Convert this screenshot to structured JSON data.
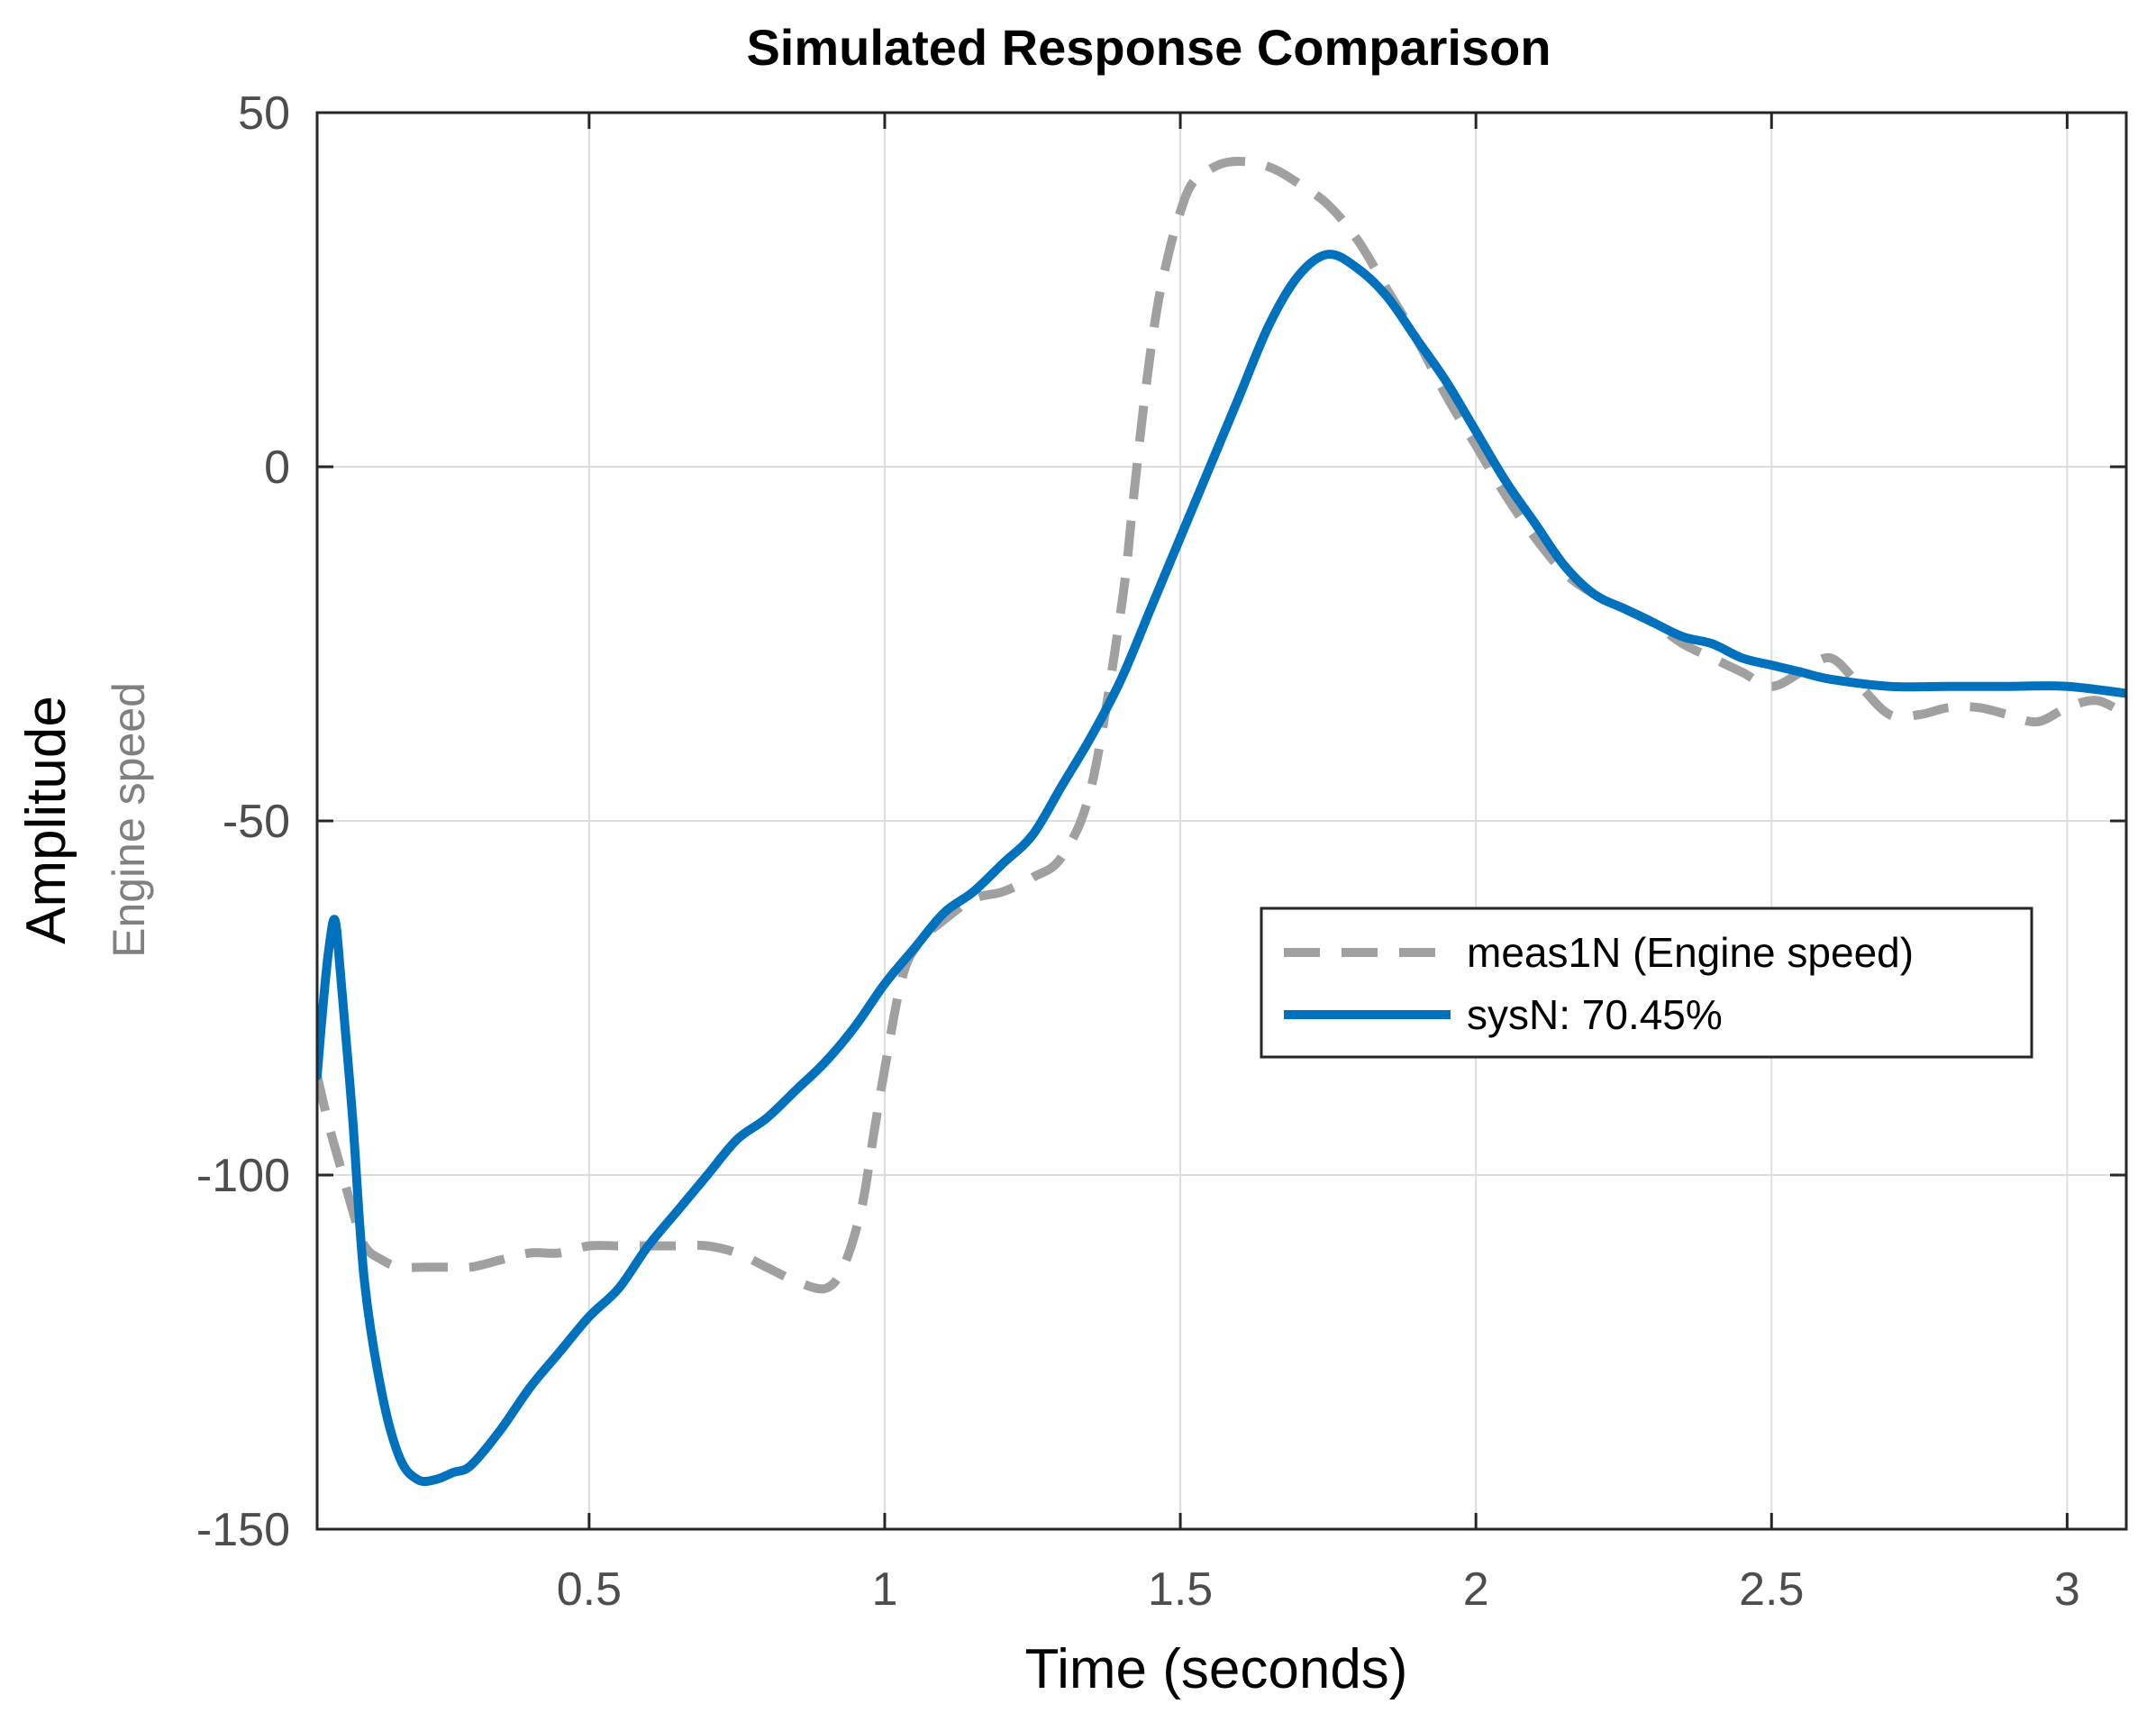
{
  "chart_data": {
    "type": "line",
    "title": "Simulated Response Comparison",
    "xlabel": "Time (seconds)",
    "ylabel": "Amplitude",
    "ylabel_sub": "Engine speed",
    "xlim": [
      0.04,
      3.1
    ],
    "ylim": [
      -150,
      50
    ],
    "xticks": [
      0.5,
      1,
      1.5,
      2,
      2.5,
      3
    ],
    "xtick_labels": [
      "0.5",
      "1",
      "1.5",
      "2",
      "2.5",
      "3"
    ],
    "yticks": [
      -150,
      -100,
      -50,
      0,
      50
    ],
    "ytick_labels": [
      "-150",
      "-100",
      "-50",
      "0",
      "50"
    ],
    "grid": true,
    "legend_position": "center-right",
    "series": [
      {
        "name": "meas1N (Engine speed)",
        "style": "dashed",
        "color": "#a0a0a0",
        "x": [
          0.04,
          0.06,
          0.08,
          0.1,
          0.12,
          0.15,
          0.18,
          0.22,
          0.26,
          0.3,
          0.35,
          0.4,
          0.45,
          0.5,
          0.55,
          0.6,
          0.65,
          0.7,
          0.75,
          0.8,
          0.85,
          0.9,
          0.93,
          0.96,
          0.98,
          1.0,
          1.03,
          1.06,
          1.1,
          1.15,
          1.2,
          1.25,
          1.3,
          1.35,
          1.4,
          1.42,
          1.44,
          1.46,
          1.48,
          1.5,
          1.52,
          1.55,
          1.58,
          1.62,
          1.66,
          1.7,
          1.75,
          1.8,
          1.85,
          1.9,
          1.95,
          2.0,
          2.05,
          2.1,
          2.15,
          2.2,
          2.25,
          2.3,
          2.35,
          2.4,
          2.45,
          2.5,
          2.55,
          2.6,
          2.65,
          2.7,
          2.75,
          2.8,
          2.85,
          2.9,
          2.95,
          3.0,
          3.05,
          3.1
        ],
        "y": [
          -86,
          -93,
          -99,
          -105,
          -110,
          -112,
          -113,
          -113,
          -113,
          -113,
          -112,
          -111,
          -111,
          -110,
          -110,
          -110,
          -110,
          -110,
          -111,
          -113,
          -115,
          -116,
          -113,
          -105,
          -95,
          -85,
          -72,
          -67,
          -64,
          -61,
          -60,
          -58,
          -55,
          -45,
          -20,
          -5,
          10,
          22,
          30,
          36,
          40,
          42,
          43,
          43,
          42,
          40,
          37,
          32,
          25,
          18,
          10,
          3,
          -4,
          -10,
          -15,
          -18,
          -20,
          -22,
          -25,
          -27,
          -29,
          -31,
          -29,
          -27,
          -31,
          -35,
          -35,
          -34,
          -34,
          -35,
          -36,
          -34,
          -33,
          -35
        ],
        "plotted_values": "points"
      },
      {
        "name": "sysN: 70.45%",
        "style": "solid",
        "color": "#0072bd",
        "x": [
          0.04,
          0.05,
          0.06,
          0.07,
          0.08,
          0.1,
          0.12,
          0.15,
          0.18,
          0.21,
          0.24,
          0.27,
          0.3,
          0.35,
          0.4,
          0.45,
          0.5,
          0.55,
          0.6,
          0.65,
          0.7,
          0.75,
          0.8,
          0.85,
          0.9,
          0.95,
          1.0,
          1.05,
          1.1,
          1.15,
          1.2,
          1.25,
          1.3,
          1.35,
          1.4,
          1.45,
          1.5,
          1.55,
          1.6,
          1.65,
          1.7,
          1.75,
          1.8,
          1.85,
          1.9,
          1.95,
          2.0,
          2.05,
          2.1,
          2.15,
          2.2,
          2.25,
          2.3,
          2.35,
          2.4,
          2.45,
          2.5,
          2.55,
          2.6,
          2.7,
          2.8,
          2.9,
          3.0,
          3.1
        ],
        "y": [
          -86,
          -76,
          -68,
          -64,
          -72,
          -92,
          -115,
          -131,
          -140,
          -143,
          -143,
          -142,
          -141,
          -136,
          -130,
          -125,
          -120,
          -116,
          -110,
          -105,
          -100,
          -95,
          -92,
          -88,
          -84,
          -79,
          -73,
          -68,
          -63,
          -60,
          -56,
          -52,
          -45,
          -38,
          -30,
          -20,
          -10,
          0,
          10,
          20,
          27,
          30,
          28,
          24,
          18,
          12,
          5,
          -2,
          -8,
          -14,
          -18,
          -20,
          -22,
          -24,
          -25,
          -27,
          -28,
          -29,
          -30,
          -31,
          -31,
          -31,
          -31,
          -32
        ]
      }
    ]
  }
}
